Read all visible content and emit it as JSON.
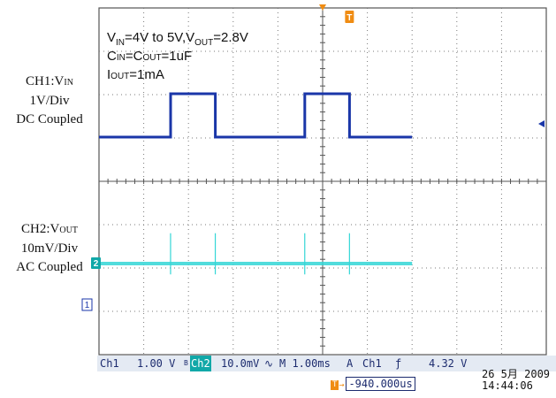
{
  "chart_data": {
    "type": "line",
    "title": "",
    "grid": true,
    "x_divisions": 10,
    "y_divisions": 8,
    "time_per_div_ms": 1.0,
    "series": [
      {
        "name": "CH1",
        "color": "#1a36a8",
        "unit": "V",
        "x_ms": [
          -5.0,
          -3.4,
          -3.4,
          -2.4,
          -2.4,
          -0.4,
          -0.4,
          0.6,
          0.6,
          2.0
        ],
        "y": [
          4,
          4,
          5,
          5,
          4,
          4,
          5,
          5,
          4,
          4
        ]
      },
      {
        "name": "CH2",
        "color": "#33d6d6",
        "unit": "mV",
        "x_ms": [
          -5.0,
          -4.0,
          -3.4,
          -2.4,
          -1.0,
          -0.4,
          0.6,
          2.0
        ],
        "y": [
          0,
          0,
          0,
          0,
          0,
          0,
          0,
          0
        ],
        "spikes_x_ms": [
          -3.4,
          -2.4,
          -0.4,
          0.6
        ],
        "spike_height_mV": 5
      }
    ]
  },
  "annotation": {
    "line1": {
      "v": "V",
      "in_sub": "IN",
      "mid": "=4V to 5V,V",
      "out_sub": "OUT",
      "end": "=2.8V"
    },
    "line2": {
      "c": "C",
      "in_sub": "IN",
      "mid": "=C",
      "out_sub": "OUT",
      "end": "=1uF"
    },
    "line3": {
      "i": "I",
      "out_sub": "OUT",
      "end": "=1mA"
    }
  },
  "ch1_label": {
    "prefix": "CH1:V",
    "sub": "IN",
    "scale": "1V/Div",
    "coupling": "DC Coupled"
  },
  "ch2_label": {
    "prefix": "CH2:V",
    "sub": "OUT",
    "scale": "10mV/Div",
    "coupling": "AC Coupled"
  },
  "markers": {
    "ch2": "2",
    "ch1": "1",
    "trigger": "T"
  },
  "status": {
    "ch1": "Ch1",
    "ch1_scale": "1.00 V",
    "bw": "B",
    "ch2": "Ch2",
    "ch2_scale": "10.0mV",
    "ch2_symbol": "∿",
    "timebase": "M 1.00ms",
    "acq": "A",
    "trig_ch": "Ch1",
    "trig_slope": "ƒ",
    "trig_level": "4.32 V"
  },
  "trigger_position": "-940.000us",
  "trigger_position_arrow": "→",
  "timestamp_date": "26 5月  2009",
  "timestamp_time": "14:44:06",
  "colors": {
    "ch1": "#1a36a8",
    "ch2": "#33d6d6",
    "grid_bg": "#ffffff",
    "status_bg": "#e4eaf3",
    "trigger": "#f08c12"
  }
}
